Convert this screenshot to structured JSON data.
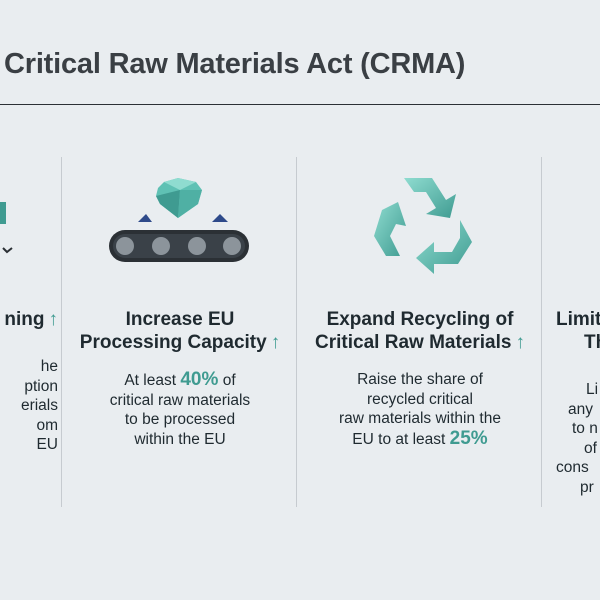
{
  "title": "Critical Raw Materials Act (CRMA)",
  "accent_color": "#3f9b91",
  "columns": [
    {
      "heading_line2": "ning",
      "body_lines": [
        "he",
        "ption",
        "erials",
        "om",
        "EU"
      ],
      "icon": "mining-icon-partial"
    },
    {
      "heading_line1": "Increase EU",
      "heading_line2": "Processing Capacity",
      "body_line1_pre": "At least",
      "body_line1_accent": "40%",
      "body_line1_post": "of",
      "body_line2": "critical raw materials",
      "body_line3": "to be processed",
      "body_line4": "within the EU",
      "icon": "conveyor-gem-icon"
    },
    {
      "heading_line1": "Expand Recycling of",
      "heading_line2": "Critical Raw Materials",
      "body_line1": "Raise the share of",
      "body_line2": "recycled critical",
      "body_line3": "raw materials within the",
      "body_line4_pre": "EU to at least",
      "body_line4_accent": "25%",
      "icon": "recycle-icon"
    },
    {
      "heading_line1": "Limit",
      "heading_line2": "Th",
      "body_lines": [
        "Li",
        "any",
        "to n",
        "of",
        "cons",
        "pr"
      ]
    }
  ],
  "arrow_glyph": "↑"
}
